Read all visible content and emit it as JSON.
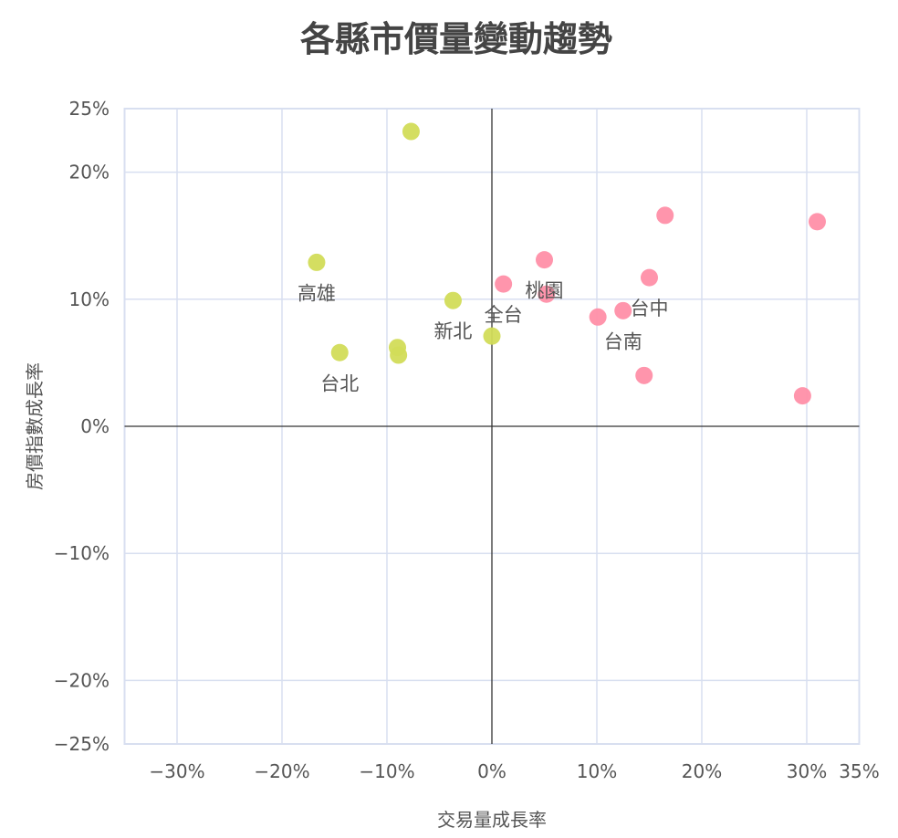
{
  "chart_data": {
    "type": "scatter",
    "title": "各縣市價量變動趨勢",
    "xlabel": "交易量成長率",
    "ylabel": "房價指數成長率",
    "xlim": [
      -35,
      35
    ],
    "ylim": [
      -25,
      25
    ],
    "x_ticks": [
      -30,
      -20,
      -10,
      0,
      10,
      20,
      30,
      35
    ],
    "y_ticks": [
      -25,
      -20,
      -10,
      0,
      10,
      20,
      25
    ],
    "x_tick_labels": [
      "−30%",
      "−20%",
      "−10%",
      "0%",
      "10%",
      "20%",
      "30%",
      "35%"
    ],
    "y_tick_labels": [
      "−25%",
      "−20%",
      "−10%",
      "0%",
      "10%",
      "20%",
      "25%"
    ],
    "grid": true,
    "colors": {
      "positive": "#ff8fa8",
      "negative": "#d2dc58",
      "grid": "#d8dff0",
      "axis": "#333333"
    },
    "points": [
      {
        "x": -7.7,
        "y": 23.2,
        "label": ""
      },
      {
        "x": -16.7,
        "y": 12.9,
        "label": "高雄"
      },
      {
        "x": -14.5,
        "y": 5.8,
        "label": "台北"
      },
      {
        "x": -9.0,
        "y": 6.2,
        "label": ""
      },
      {
        "x": -8.9,
        "y": 5.6,
        "label": ""
      },
      {
        "x": -3.7,
        "y": 9.9,
        "label": "新北"
      },
      {
        "x": 0.0,
        "y": 7.1,
        "label": ""
      },
      {
        "x": 1.1,
        "y": 11.2,
        "label": "全台"
      },
      {
        "x": 5.0,
        "y": 13.1,
        "label": "桃園"
      },
      {
        "x": 5.2,
        "y": 10.4,
        "label": ""
      },
      {
        "x": 10.1,
        "y": 8.6,
        "label": ""
      },
      {
        "x": 12.5,
        "y": 9.1,
        "label": "台南"
      },
      {
        "x": 15.0,
        "y": 11.7,
        "label": "台中"
      },
      {
        "x": 16.5,
        "y": 16.6,
        "label": ""
      },
      {
        "x": 14.5,
        "y": 4.0,
        "label": ""
      },
      {
        "x": 31.0,
        "y": 16.1,
        "label": ""
      },
      {
        "x": 29.6,
        "y": 2.4,
        "label": ""
      }
    ]
  }
}
